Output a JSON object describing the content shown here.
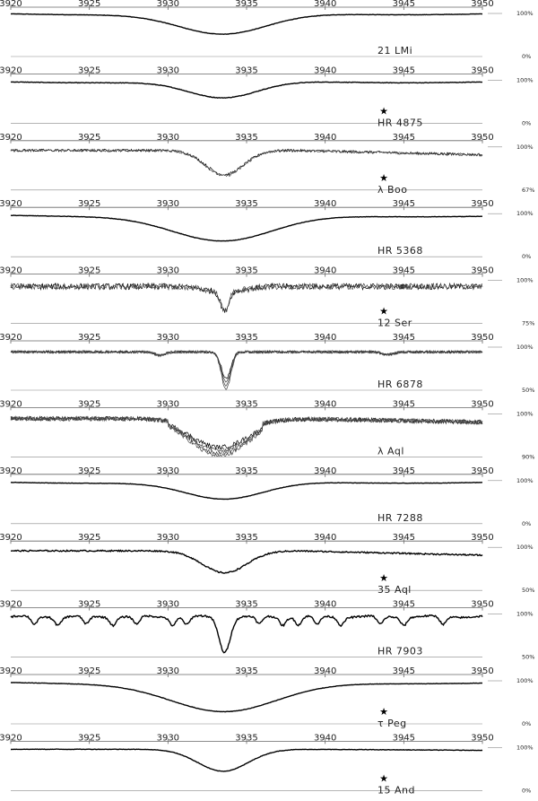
{
  "chart_data": {
    "type": "line",
    "title": "",
    "xlabel": "",
    "ylabel": "",
    "xlim": [
      3920,
      3950
    ],
    "x_ticks": [
      "3920",
      "3925",
      "3930",
      "3935",
      "3940",
      "3945",
      "3950"
    ],
    "star_marker": "★",
    "ylabel_right_top": "100%",
    "panels": [
      {
        "name": "21 LMi",
        "top_label": "100%",
        "bottom_label": "0%",
        "starred": false,
        "line_center": 3933.5,
        "line_width": 2.8,
        "line_depth": 0.48,
        "noise": 0.004,
        "continuum": 0.95,
        "slope": 0.0,
        "mode": "broad"
      },
      {
        "name": "HR 4875",
        "top_label": "100%",
        "bottom_label": "0%",
        "starred": true,
        "line_center": 3933.5,
        "line_width": 2.2,
        "line_depth": 0.38,
        "noise": 0.006,
        "continuum": 0.92,
        "slope": 0.0,
        "mode": "broad"
      },
      {
        "name": "λ Boo",
        "top_label": "100%",
        "bottom_label": "67%",
        "starred": true,
        "line_center": 3933.6,
        "line_width": 1.2,
        "line_depth": 0.55,
        "noise": 0.03,
        "continuum": 0.88,
        "slope": 0.25,
        "mode": "narrow"
      },
      {
        "name": "HR 5368",
        "top_label": "100%",
        "bottom_label": "0%",
        "starred": false,
        "line_center": 3933.5,
        "line_width": 3.2,
        "line_depth": 0.6,
        "noise": 0.004,
        "continuum": 0.92,
        "slope": 0.05,
        "mode": "broad"
      },
      {
        "name": "12 Ser",
        "top_label": "100%",
        "bottom_label": "75%",
        "starred": true,
        "line_center": 3933.6,
        "line_width": 0.2,
        "line_depth": 0.45,
        "noise": 0.07,
        "continuum": 0.82,
        "slope": 0.0,
        "mode": "sharp"
      },
      {
        "name": "HR 6878",
        "top_label": "100%",
        "bottom_label": "50%",
        "starred": false,
        "line_center": 3933.7,
        "line_width": 0.3,
        "line_depth": 0.85,
        "noise": 0.03,
        "continuum": 0.85,
        "slope": 0.0,
        "mode": "multi"
      },
      {
        "name": "λ Aql",
        "top_label": "100%",
        "bottom_label": "90%",
        "starred": false,
        "line_center": 3933.2,
        "line_width": 1.8,
        "line_depth": 0.5,
        "noise": 0.05,
        "continuum": 0.85,
        "slope": 0.2,
        "mode": "noisy"
      },
      {
        "name": "HR 7288",
        "top_label": "100%",
        "bottom_label": "0%",
        "starred": false,
        "line_center": 3933.6,
        "line_width": 2.5,
        "line_depth": 0.4,
        "noise": 0.004,
        "continuum": 0.92,
        "slope": 0.0,
        "mode": "broad"
      },
      {
        "name": "35 Aql",
        "top_label": "100%",
        "bottom_label": "50%",
        "starred": true,
        "line_center": 3933.6,
        "line_width": 1.4,
        "line_depth": 0.5,
        "noise": 0.015,
        "continuum": 0.88,
        "slope": 0.25,
        "mode": "narrow"
      },
      {
        "name": "HR 7903",
        "top_label": "100%",
        "bottom_label": "50%",
        "starred": false,
        "line_center": 3933.6,
        "line_width": 0.35,
        "line_depth": 0.8,
        "noise": 0.02,
        "continuum": 0.9,
        "slope": 0.0,
        "mode": "metal"
      },
      {
        "name": "τ Peg",
        "top_label": "100%",
        "bottom_label": "0%",
        "starred": true,
        "line_center": 3933.6,
        "line_width": 3.4,
        "line_depth": 0.68,
        "noise": 0.004,
        "continuum": 0.92,
        "slope": 0.03,
        "mode": "broad"
      },
      {
        "name": "15 And",
        "top_label": "100%",
        "bottom_label": "0%",
        "starred": true,
        "line_center": 3933.5,
        "line_width": 1.6,
        "line_depth": 0.5,
        "noise": 0.005,
        "continuum": 0.92,
        "slope": 0.06,
        "mode": "narrow"
      }
    ]
  }
}
